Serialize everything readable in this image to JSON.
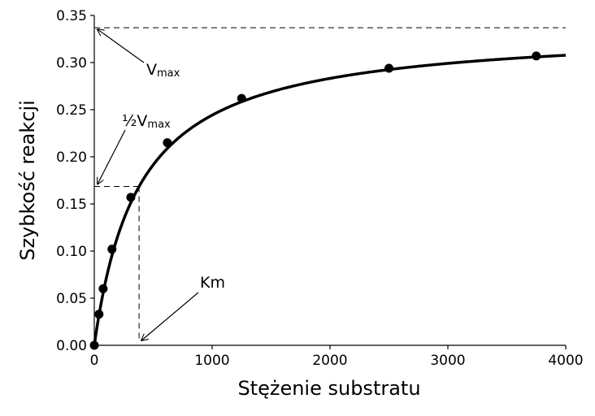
{
  "chart_data": {
    "type": "line",
    "title": "",
    "xlabel": "Stężenie substratu",
    "ylabel": "Szybkość reakcji",
    "xlim": [
      0,
      4000
    ],
    "ylim": [
      0,
      0.35
    ],
    "x_ticks": [
      "0",
      "1000",
      "2000",
      "3000",
      "4000"
    ],
    "y_ticks": [
      "0.00",
      "0.05",
      "0.10",
      "0.15",
      "0.20",
      "0.25",
      "0.30",
      "0.35"
    ],
    "grid": false,
    "curve": {
      "model": "michaelis-menten",
      "vmax": 0.337,
      "km": 380,
      "x_range": [
        0,
        4000
      ]
    },
    "points": {
      "x": [
        0,
        40,
        75,
        150,
        310,
        620,
        1250,
        2500,
        3750
      ],
      "y": [
        0.0,
        0.033,
        0.06,
        0.102,
        0.157,
        0.215,
        0.262,
        0.294,
        0.307
      ]
    },
    "annotations": {
      "vmax": {
        "text": "V",
        "sub": "max",
        "value": 0.337
      },
      "half_vmax": {
        "text": "½V",
        "sub": "max",
        "value": 0.1685
      },
      "km": {
        "text": "Km",
        "value": 380
      }
    }
  }
}
